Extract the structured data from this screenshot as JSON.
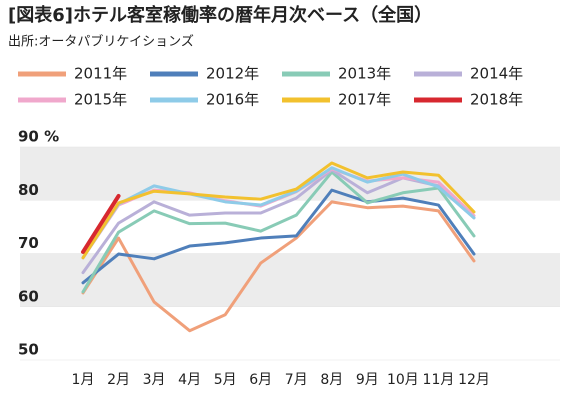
{
  "chart_data": {
    "type": "line",
    "title": "[図表6]ホテル客室稼働率の暦年月次ベース（全国）",
    "subtitle": "出所:オータパブリケイションズ",
    "categories": [
      "1月",
      "2月",
      "3月",
      "4月",
      "5月",
      "6月",
      "7月",
      "8月",
      "9月",
      "10月",
      "11月",
      "12月"
    ],
    "ylim": [
      50,
      90
    ],
    "yticks": [
      50,
      60,
      70,
      80,
      {
        "value": 90,
        "label": "90 %"
      }
    ],
    "series": [
      {
        "name": "2011年",
        "color": "#f0a07a",
        "values": [
          62.6,
          72.9,
          60.9,
          55.5,
          58.5,
          68.2,
          72.9,
          79.7,
          78.6,
          78.9,
          78.0,
          68.6
        ]
      },
      {
        "name": "2012年",
        "color": "#4f7fba",
        "values": [
          64.5,
          69.9,
          69.0,
          71.4,
          72.0,
          72.9,
          73.3,
          81.9,
          79.7,
          80.4,
          79.1,
          69.9
        ]
      },
      {
        "name": "2013年",
        "color": "#88cbb6",
        "values": [
          62.8,
          74.0,
          78.0,
          75.6,
          75.7,
          74.2,
          77.2,
          85.3,
          79.5,
          81.4,
          82.3,
          73.3
        ]
      },
      {
        "name": "2014年",
        "color": "#b9b0d8",
        "values": [
          66.4,
          75.7,
          79.7,
          77.2,
          77.6,
          77.6,
          80.4,
          85.7,
          81.4,
          84.2,
          82.7,
          76.7
        ]
      },
      {
        "name": "2015年",
        "color": "#f0a8cc",
        "values": [
          69.2,
          79.1,
          81.9,
          81.4,
          79.9,
          78.9,
          81.6,
          85.9,
          83.6,
          84.2,
          83.4,
          77.1
        ]
      },
      {
        "name": "2016年",
        "color": "#8ecbe8",
        "values": [
          69.2,
          79.3,
          82.7,
          81.2,
          79.7,
          79.1,
          81.7,
          86.1,
          83.4,
          84.9,
          82.5,
          76.7
        ]
      },
      {
        "name": "2017年",
        "color": "#f2c12e",
        "values": [
          69.2,
          79.5,
          81.7,
          81.2,
          80.6,
          80.2,
          82.1,
          87.0,
          84.2,
          85.3,
          84.7,
          77.8
        ]
      },
      {
        "name": "2018年",
        "color": "#d7282f",
        "values": [
          70.3,
          80.8,
          null,
          null,
          null,
          null,
          null,
          null,
          null,
          null,
          null,
          null
        ]
      }
    ]
  }
}
